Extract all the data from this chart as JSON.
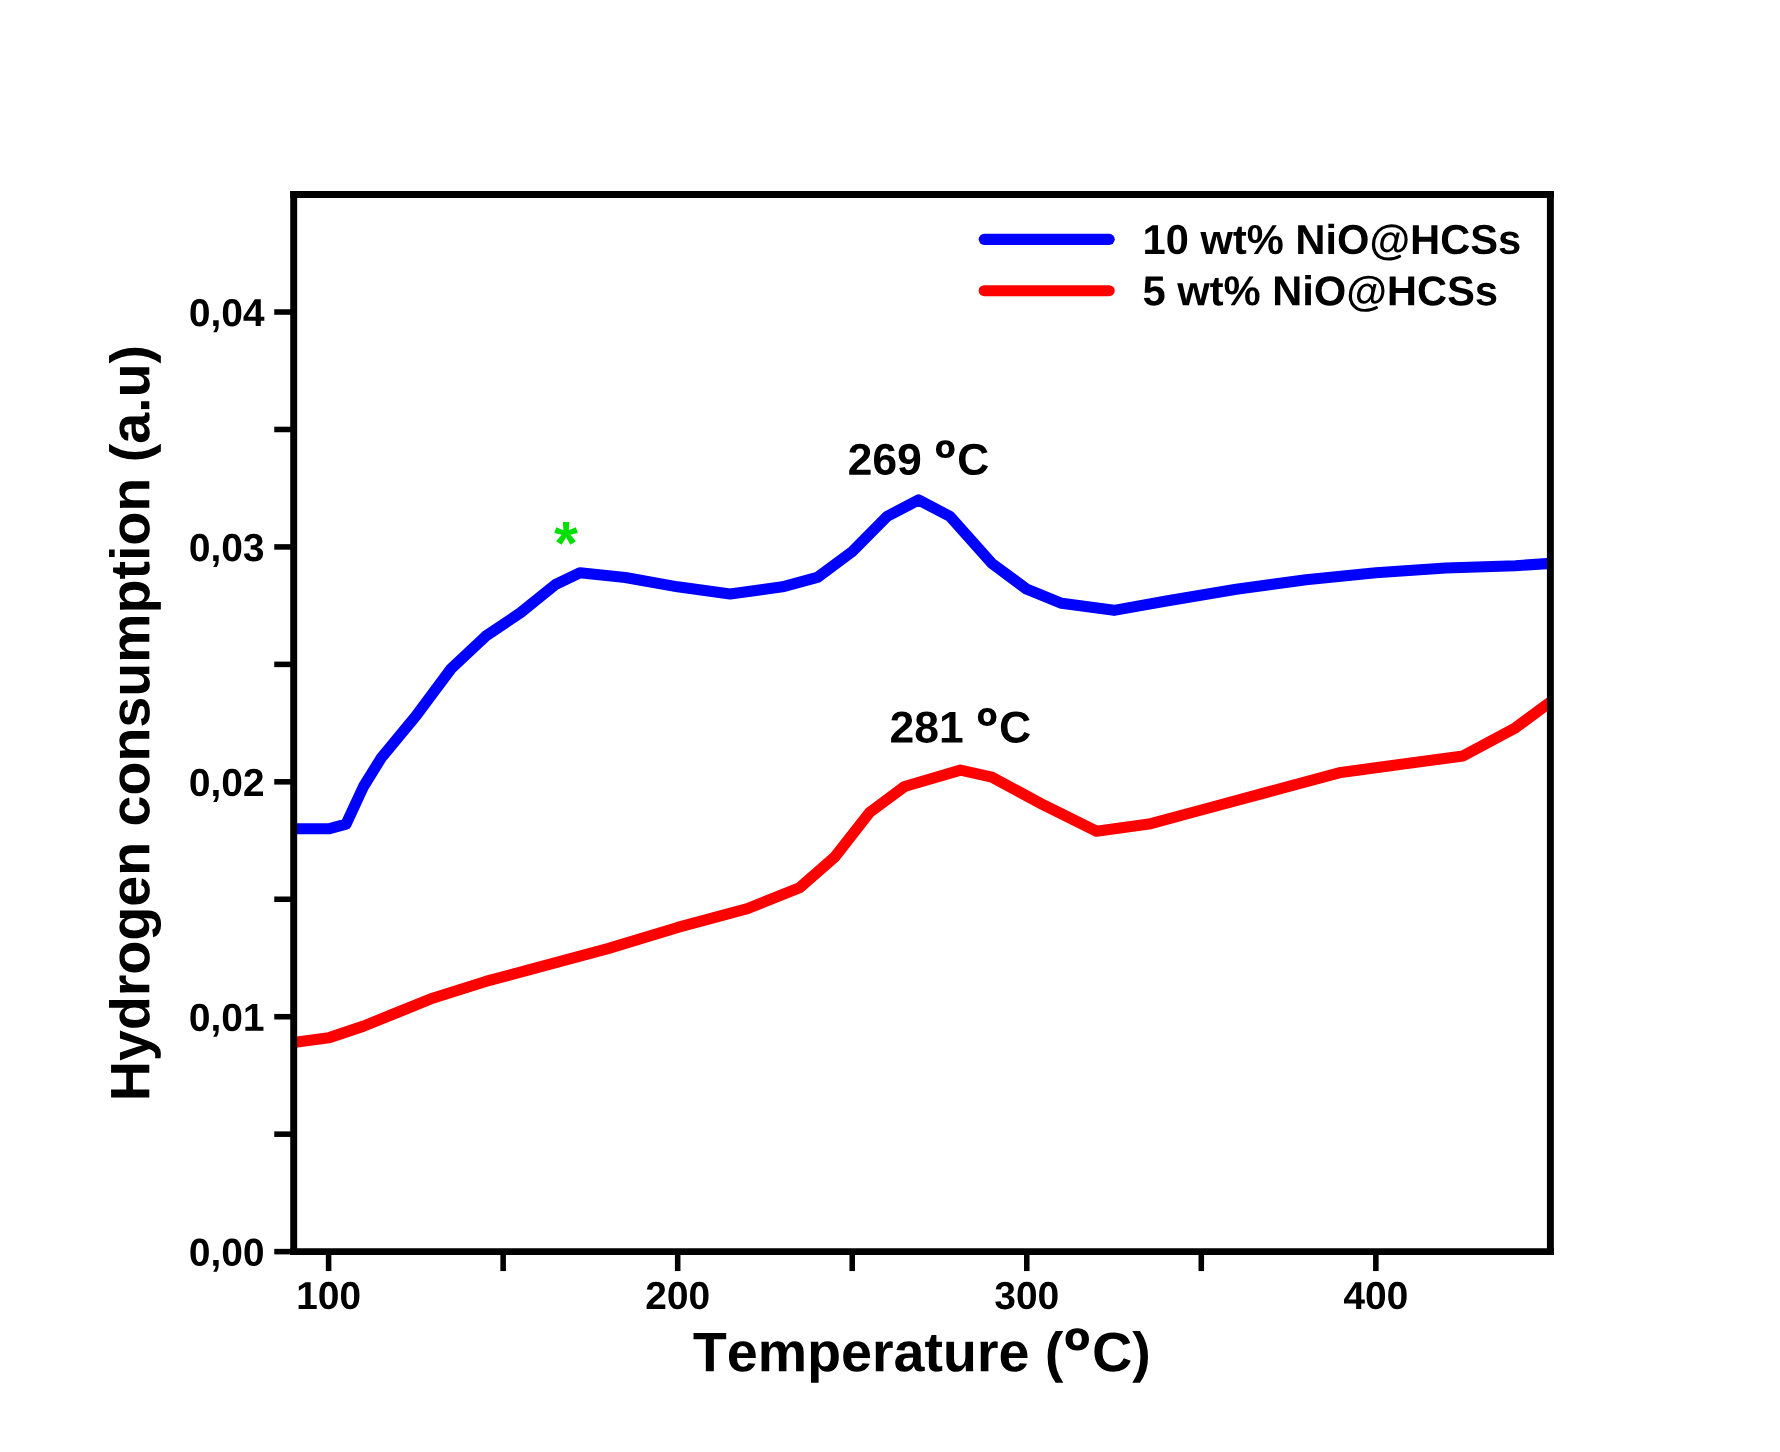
{
  "chart_data": {
    "type": "line",
    "xlabel": "Temperature ($^{o}$C)",
    "ylabel": "Hydrogen consumption (a.u)",
    "xlim": [
      90,
      450
    ],
    "ylim": [
      0,
      0.045
    ],
    "xticks": [
      100,
      {
        "value": 150,
        "label": null
      },
      200,
      {
        "value": 250,
        "label": null
      },
      300,
      {
        "value": 350,
        "label": null
      },
      400
    ],
    "yticks": [
      {
        "value": 0,
        "label": "0,00"
      },
      {
        "value": 0.005,
        "label": null
      },
      {
        "value": 0.01,
        "label": "0,01"
      },
      {
        "value": 0.015,
        "label": null
      },
      {
        "value": 0.02,
        "label": "0,02"
      },
      {
        "value": 0.025,
        "label": null
      },
      {
        "value": 0.03,
        "label": "0,03"
      },
      {
        "value": 0.035,
        "label": null
      },
      {
        "value": 0.04,
        "label": "0,04"
      }
    ],
    "grid": false,
    "legend": "top right",
    "marker": "none",
    "line_style": "solid",
    "series": [
      {
        "name": "10 wt% NiO@HCSs",
        "color": "#0000ff",
        "x": [
          90,
          100,
          105,
          110,
          115,
          125,
          135,
          145,
          155,
          165,
          172,
          185,
          200,
          215,
          230,
          240,
          250,
          260,
          269,
          278,
          290,
          300,
          310,
          325,
          340,
          360,
          380,
          400,
          420,
          440,
          450
        ],
        "values": [
          0.018,
          0.018,
          0.0182,
          0.0198,
          0.021,
          0.0228,
          0.0248,
          0.0262,
          0.0272,
          0.0284,
          0.0289,
          0.0287,
          0.0283,
          0.028,
          0.0283,
          0.0287,
          0.0298,
          0.0313,
          0.032,
          0.0313,
          0.0293,
          0.0282,
          0.0276,
          0.0273,
          0.0277,
          0.0282,
          0.0286,
          0.0289,
          0.0291,
          0.0292,
          0.0293
        ]
      },
      {
        "name": "5 wt% NiO@HCSs",
        "color": "#ff0000",
        "x": [
          90,
          100,
          110,
          120,
          130,
          145,
          160,
          180,
          200,
          220,
          235,
          245,
          255,
          265,
          281,
          290,
          305,
          320,
          335,
          350,
          370,
          390,
          410,
          425,
          440,
          450
        ],
        "values": [
          0.0089,
          0.0091,
          0.0096,
          0.0102,
          0.0108,
          0.0115,
          0.0121,
          0.0129,
          0.0138,
          0.0146,
          0.0155,
          0.0168,
          0.0187,
          0.0198,
          0.0205,
          0.0202,
          0.019,
          0.0179,
          0.0182,
          0.0188,
          0.0196,
          0.0204,
          0.0208,
          0.0211,
          0.0223,
          0.0234
        ]
      }
    ],
    "annotations": [
      {
        "text": "269 $^{o}$C",
        "x": 269,
        "y": 0.0322
      },
      {
        "text": "281 $^{o}$C",
        "x": 281,
        "y": 0.0208
      },
      {
        "text": "*",
        "x": 168,
        "y": 0.0292
      }
    ]
  }
}
